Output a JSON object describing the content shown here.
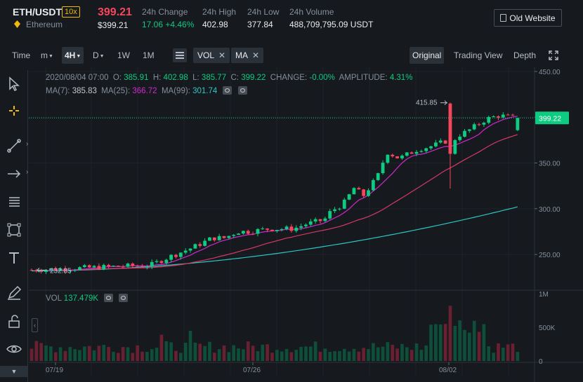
{
  "header": {
    "pair": "ETH/USDT",
    "leverage": "10x",
    "coin_name": "Ethereum",
    "last_price": "399.21",
    "last_price_usd": "$399.21",
    "change_label": "24h Change",
    "change_value": "17.06 +4.46%",
    "high_label": "24h High",
    "high_value": "402.98",
    "low_label": "24h Low",
    "low_value": "377.84",
    "volume_label": "24h Volume",
    "volume_value": "488,709,795.09 USDT",
    "old_website": "Old Website"
  },
  "toolbar": {
    "time": "Time",
    "minute": "m",
    "interval_4h": "4H",
    "day": "D",
    "week": "1W",
    "month": "1M",
    "vol_chip": "VOL",
    "ma_chip": "MA",
    "views": [
      "Original",
      "Trading View",
      "Depth"
    ],
    "selected_view": "Original"
  },
  "ohlc": {
    "date": "2020/08/04 07:00",
    "o_label": "O:",
    "o": "385.91",
    "h_label": "H:",
    "h": "402.98",
    "l_label": "L:",
    "l": "385.77",
    "c_label": "C:",
    "c": "399.22",
    "change_label": "CHANGE:",
    "change": "-0.00%",
    "amp_label": "AMPLITUDE:",
    "amp": "4.31%"
  },
  "ma": {
    "ma7_label": "MA(7):",
    "ma7": "385.83",
    "ma25_label": "MA(25):",
    "ma25": "366.72",
    "ma99_label": "MA(99):",
    "ma99": "301.74"
  },
  "vol": {
    "label": "VOL",
    "value": "137.479K"
  },
  "colors": {
    "up": "#0ecb81",
    "down": "#f6465d",
    "ma7": "#c7c7c7",
    "ma7_line": "#d426d0",
    "ma25": "#d63864",
    "ma99": "#2cc6c4",
    "accent": "#f0b90b"
  },
  "chart_data": {
    "type": "candlestick",
    "interval": "4H",
    "current_price": 399.22,
    "max_marker": 415.85,
    "min_marker": 232.85,
    "price_axis_ticks": [
      450,
      400,
      350,
      300,
      250
    ],
    "price_axis_labels": [
      "450.00",
      "400.00",
      "350.00",
      "300.00",
      "250.00"
    ],
    "volume_axis_labels": [
      "1M",
      "500K",
      "0"
    ],
    "date_labels": [
      "07/19",
      "07/26",
      "08/02"
    ],
    "ylim": [
      232,
      455
    ]
  }
}
